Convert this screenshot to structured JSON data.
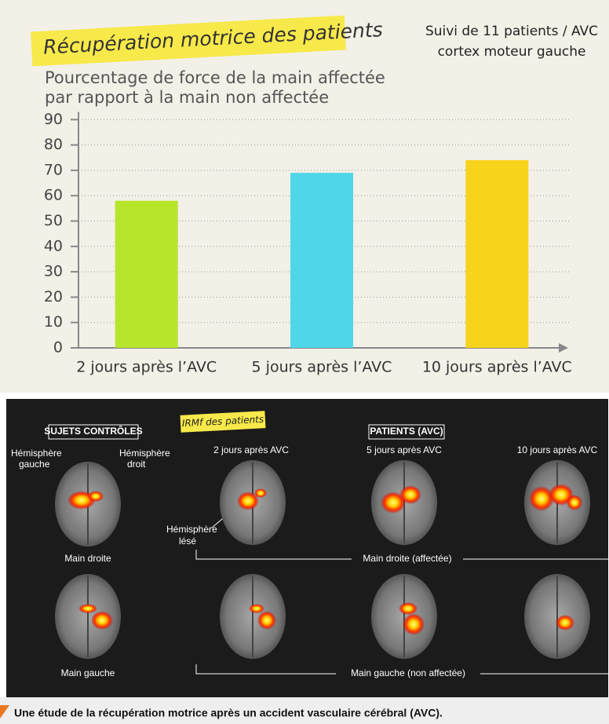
{
  "chart_data": {
    "type": "bar",
    "title": "Récupération motrice des patients",
    "ylabel_lines": [
      "Pourcentage de force de la main affectée",
      "par rapport à la main non affectée"
    ],
    "annotation_lines": [
      "Suivi de 11 patients / AVC",
      "cortex moteur gauche"
    ],
    "categories": [
      "2 jours après l’AVC",
      "5 jours après l’AVC",
      "10 jours après l’AVC"
    ],
    "values": [
      58,
      69,
      74
    ],
    "colors": [
      "#b7e52b",
      "#4fd6e8",
      "#f8d31c"
    ],
    "ylim": [
      0,
      93
    ],
    "yticks": [
      0,
      10,
      20,
      30,
      40,
      50,
      60,
      70,
      80,
      90
    ],
    "grid": true
  },
  "imaging": {
    "tag": "IRMf des patients",
    "controls_header": "SUJETS CONTRÔLES",
    "patients_header": "PATIENTS (AVC)",
    "columns": [
      "2 jours après AVC",
      "5 jours après AVC",
      "10 jours après AVC"
    ],
    "left_hemisphere": [
      "Hémisphère",
      "gauche"
    ],
    "right_hemisphere": [
      "Hémisphère",
      "droit"
    ],
    "lesioned_hemisphere": [
      "Hémisphère",
      "lésé"
    ],
    "row1_control": "Main droite",
    "row1_patients": "Main  droite (affectée)",
    "row2_control": "Main gauche",
    "row2_patients": "Main gauche (non affectée)"
  },
  "caption": "Une étude de la récupération motrice après un accident vasculaire cérébral (AVC)."
}
